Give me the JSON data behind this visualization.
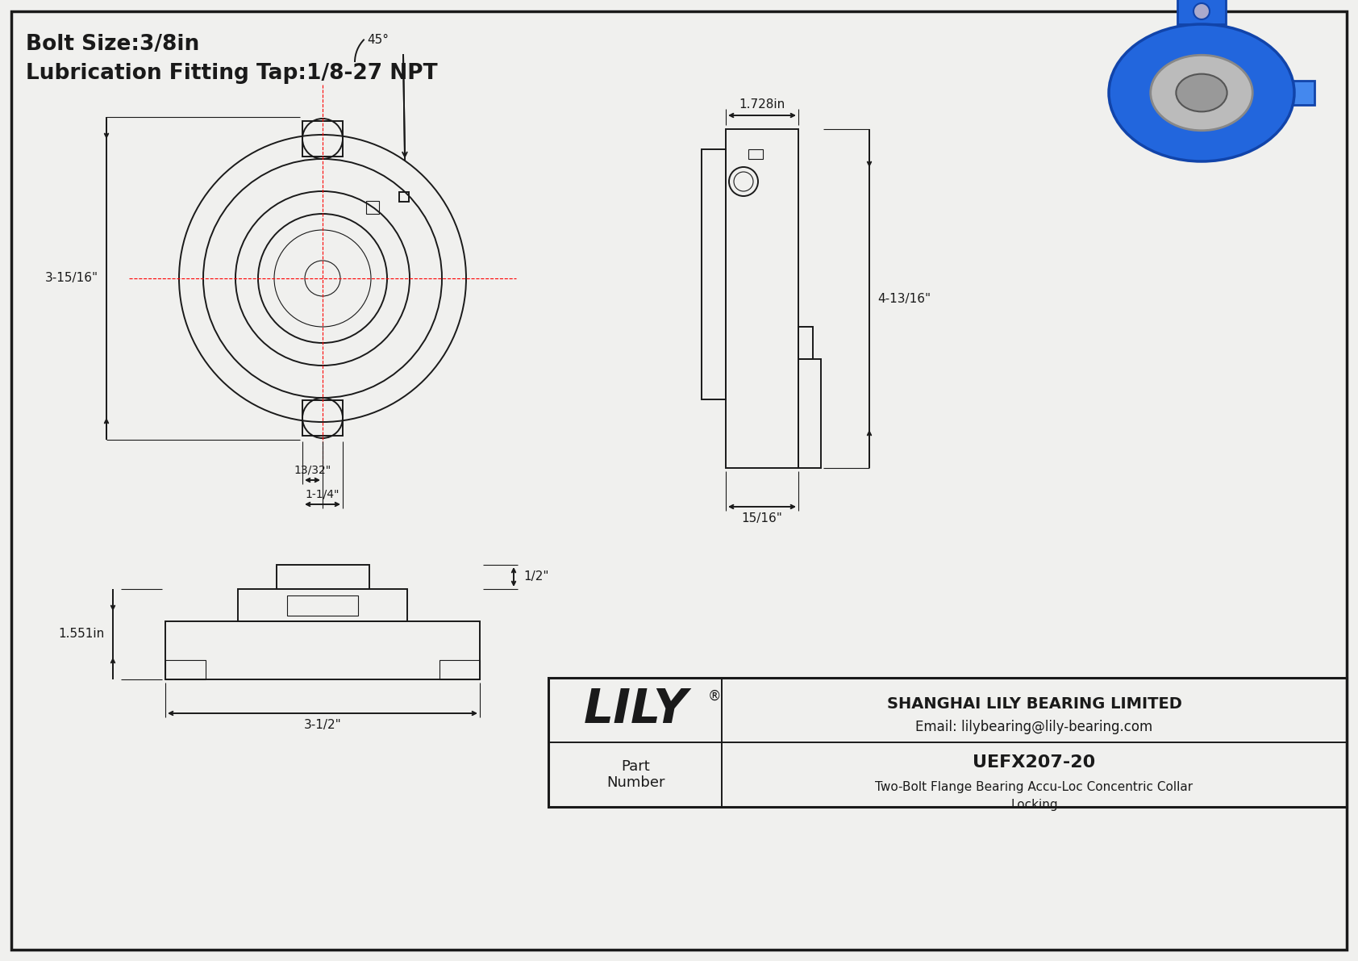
{
  "bg_color": "#f0f0ee",
  "line_color": "#1a1a1a",
  "red_color": "#ff0000",
  "title_line1": "Bolt Size:3/8in",
  "title_line2": "Lubrication Fitting Tap:1/8-27 NPT",
  "part_number": "UEFX207-20",
  "part_desc1": "Two-Bolt Flange Bearing Accu-Loc Concentric Collar",
  "part_desc2": "Locking",
  "company_name": "SHANGHAI LILY BEARING LIMITED",
  "company_email": "Email: lilybearing@lily-bearing.com",
  "logo_text": "LILY",
  "logo_reg": "®",
  "part_label": "Part\nNumber",
  "dim_45": "45°",
  "dim_top": "1.728in",
  "dim_left": "3-15/16\"",
  "dim_right": "4-13/16\"",
  "dim_b1": "13/32\"",
  "dim_b2": "1-1/4\"",
  "dim_bottom_w": "15/16\"",
  "dim_side_h": "1.551in",
  "dim_side_w": "3-1/2\"",
  "dim_side_r": "1/2\""
}
